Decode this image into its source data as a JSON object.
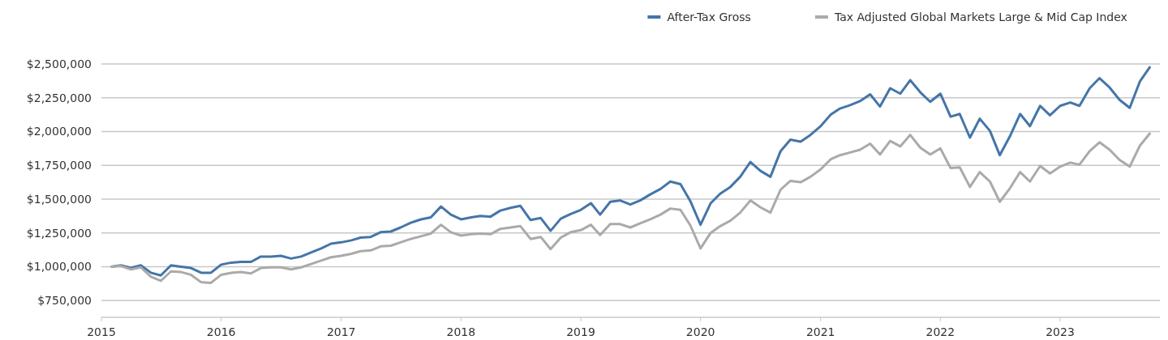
{
  "chart_data": {
    "type": "line",
    "x": [
      "2015-02",
      "2015-03",
      "2015-04",
      "2015-05",
      "2015-06",
      "2015-07",
      "2015-08",
      "2015-09",
      "2015-10",
      "2015-11",
      "2015-12",
      "2016-01",
      "2016-02",
      "2016-03",
      "2016-04",
      "2016-05",
      "2016-06",
      "2016-07",
      "2016-08",
      "2016-09",
      "2016-10",
      "2016-11",
      "2016-12",
      "2017-01",
      "2017-02",
      "2017-03",
      "2017-04",
      "2017-05",
      "2017-06",
      "2017-07",
      "2017-08",
      "2017-09",
      "2017-10",
      "2017-11",
      "2017-12",
      "2018-01",
      "2018-02",
      "2018-03",
      "2018-04",
      "2018-05",
      "2018-06",
      "2018-07",
      "2018-08",
      "2018-09",
      "2018-10",
      "2018-11",
      "2018-12",
      "2019-01",
      "2019-02",
      "2019-03",
      "2019-04",
      "2019-05",
      "2019-06",
      "2019-07",
      "2019-08",
      "2019-09",
      "2019-10",
      "2019-11",
      "2019-12",
      "2020-01",
      "2020-02",
      "2020-03",
      "2020-04",
      "2020-05",
      "2020-06",
      "2020-07",
      "2020-08",
      "2020-09",
      "2020-10",
      "2020-11",
      "2020-12",
      "2021-01",
      "2021-02",
      "2021-03",
      "2021-04",
      "2021-05",
      "2021-06",
      "2021-07",
      "2021-08",
      "2021-09",
      "2021-10",
      "2021-11",
      "2021-12",
      "2022-01",
      "2022-02",
      "2022-03",
      "2022-04",
      "2022-05",
      "2022-06",
      "2022-07",
      "2022-08",
      "2022-09",
      "2022-10",
      "2022-11",
      "2022-12",
      "2023-01",
      "2023-02",
      "2023-03",
      "2023-04",
      "2023-05",
      "2023-06",
      "2023-07",
      "2023-08",
      "2023-09",
      "2023-10"
    ],
    "series": [
      {
        "name": "After-Tax Gross",
        "color": "#4575a8",
        "values": [
          1000000,
          1010000,
          990000,
          1010000,
          955000,
          935000,
          1010000,
          1000000,
          990000,
          955000,
          955000,
          1015000,
          1030000,
          1035000,
          1035000,
          1075000,
          1075000,
          1080000,
          1060000,
          1075000,
          1105000,
          1135000,
          1170000,
          1180000,
          1195000,
          1215000,
          1220000,
          1255000,
          1260000,
          1290000,
          1325000,
          1350000,
          1365000,
          1445000,
          1385000,
          1350000,
          1365000,
          1375000,
          1370000,
          1415000,
          1435000,
          1450000,
          1345000,
          1360000,
          1265000,
          1355000,
          1390000,
          1420000,
          1470000,
          1385000,
          1480000,
          1490000,
          1460000,
          1490000,
          1535000,
          1575000,
          1630000,
          1610000,
          1485000,
          1310000,
          1470000,
          1540000,
          1590000,
          1665000,
          1775000,
          1710000,
          1665000,
          1855000,
          1940000,
          1925000,
          1975000,
          2040000,
          2125000,
          2170000,
          2195000,
          2225000,
          2275000,
          2185000,
          2320000,
          2280000,
          2380000,
          2290000,
          2220000,
          2280000,
          2110000,
          2130000,
          1955000,
          2095000,
          2005000,
          1825000,
          1965000,
          2130000,
          2040000,
          2190000,
          2120000,
          2190000,
          2215000,
          2190000,
          2320000,
          2395000,
          2325000,
          2235000,
          2175000,
          2370000,
          2475000
        ]
      },
      {
        "name": "Tax Adjusted Global Markets Large & Mid Cap Index",
        "color": "#aaaaaa",
        "values": [
          1000000,
          1005000,
          980000,
          995000,
          925000,
          895000,
          965000,
          960000,
          940000,
          885000,
          880000,
          940000,
          955000,
          960000,
          950000,
          990000,
          995000,
          995000,
          980000,
          995000,
          1020000,
          1045000,
          1070000,
          1080000,
          1095000,
          1115000,
          1120000,
          1150000,
          1155000,
          1180000,
          1205000,
          1225000,
          1245000,
          1310000,
          1255000,
          1230000,
          1240000,
          1245000,
          1240000,
          1280000,
          1290000,
          1300000,
          1205000,
          1220000,
          1130000,
          1215000,
          1255000,
          1270000,
          1310000,
          1235000,
          1315000,
          1315000,
          1290000,
          1320000,
          1350000,
          1385000,
          1430000,
          1420000,
          1305000,
          1135000,
          1250000,
          1300000,
          1340000,
          1400000,
          1490000,
          1440000,
          1400000,
          1570000,
          1635000,
          1625000,
          1665000,
          1720000,
          1795000,
          1825000,
          1845000,
          1865000,
          1910000,
          1830000,
          1930000,
          1890000,
          1975000,
          1880000,
          1830000,
          1875000,
          1730000,
          1735000,
          1590000,
          1700000,
          1630000,
          1480000,
          1580000,
          1700000,
          1630000,
          1745000,
          1690000,
          1740000,
          1770000,
          1755000,
          1855000,
          1920000,
          1865000,
          1790000,
          1740000,
          1895000,
          1985000
        ]
      }
    ],
    "xlim": [
      "2015-01",
      "2023-11"
    ],
    "xticks": [
      "2015",
      "2016",
      "2017",
      "2018",
      "2019",
      "2020",
      "2021",
      "2022",
      "2023"
    ],
    "ylim": [
      625000,
      2500000
    ],
    "yticks": [
      {
        "value": 750000,
        "label": "$750,000"
      },
      {
        "value": 1000000,
        "label": "$1,000,000"
      },
      {
        "value": 1250000,
        "label": "$1,250,000"
      },
      {
        "value": 1500000,
        "label": "$1,500,000"
      },
      {
        "value": 1750000,
        "label": "$1,750,000"
      },
      {
        "value": 2000000,
        "label": "$2,000,000"
      },
      {
        "value": 2250000,
        "label": "$2,250,000"
      },
      {
        "value": 2500000,
        "label": "$2,500,000"
      }
    ],
    "grid": "y",
    "legend": "top right",
    "marker": "none",
    "line_style": "solid"
  }
}
